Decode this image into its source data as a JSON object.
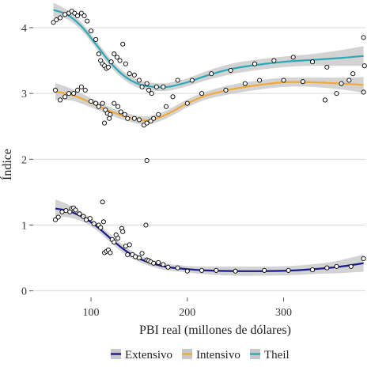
{
  "chart_data": {
    "type": "scatter",
    "title": "",
    "xlabel": "PBI real (millones de dólares)",
    "ylabel": "Índice",
    "xlim": [
      40,
      385
    ],
    "ylim": [
      -0.1,
      4.3
    ],
    "x_ticks": [
      100,
      200,
      300
    ],
    "y_ticks": [
      0,
      1,
      2,
      3,
      4
    ],
    "grid": true,
    "legend_position": "bottom",
    "background": "#ffffff",
    "gridline_color": "#d9d9d9",
    "band_color": "#c8c8c8",
    "series": [
      {
        "name": "Extensivo",
        "color": "#1a1a8c",
        "points": [
          [
            63,
            1.08
          ],
          [
            66,
            1.12
          ],
          [
            70,
            1.2
          ],
          [
            74,
            1.22
          ],
          [
            78,
            1.2
          ],
          [
            80,
            1.25
          ],
          [
            82,
            1.26
          ],
          [
            84,
            1.23
          ],
          [
            88,
            1.17
          ],
          [
            92,
            1.13
          ],
          [
            95,
            1.08
          ],
          [
            99,
            1.1
          ],
          [
            103,
            1.02
          ],
          [
            108,
            1.0
          ],
          [
            110,
            0.96
          ],
          [
            112,
            1.35
          ],
          [
            113,
            1.05
          ],
          [
            114,
            0.58
          ],
          [
            116,
            0.6
          ],
          [
            118,
            0.62
          ],
          [
            120,
            0.58
          ],
          [
            122,
            0.78
          ],
          [
            124,
            0.74
          ],
          [
            126,
            0.85
          ],
          [
            128,
            0.8
          ],
          [
            132,
            0.95
          ],
          [
            133,
            0.9
          ],
          [
            136,
            0.68
          ],
          [
            138,
            0.55
          ],
          [
            140,
            0.7
          ],
          [
            143,
            0.55
          ],
          [
            146,
            0.52
          ],
          [
            150,
            0.5
          ],
          [
            153,
            0.57
          ],
          [
            157,
            1.0
          ],
          [
            158,
            0.47
          ],
          [
            160,
            0.46
          ],
          [
            162,
            0.44
          ],
          [
            165,
            0.42
          ],
          [
            170,
            0.43
          ],
          [
            175,
            0.4
          ],
          [
            180,
            0.36
          ],
          [
            190,
            0.35
          ],
          [
            200,
            0.3
          ],
          [
            215,
            0.31
          ],
          [
            230,
            0.31
          ],
          [
            250,
            0.3
          ],
          [
            280,
            0.31
          ],
          [
            305,
            0.31
          ],
          [
            330,
            0.32
          ],
          [
            345,
            0.35
          ],
          [
            355,
            0.37
          ],
          [
            370,
            0.37
          ],
          [
            383,
            0.49
          ]
        ],
        "smooth": [
          [
            63,
            1.25
          ],
          [
            75,
            1.22
          ],
          [
            90,
            1.13
          ],
          [
            105,
            0.99
          ],
          [
            120,
            0.8
          ],
          [
            135,
            0.62
          ],
          [
            150,
            0.49
          ],
          [
            165,
            0.41
          ],
          [
            180,
            0.36
          ],
          [
            200,
            0.33
          ],
          [
            220,
            0.31
          ],
          [
            250,
            0.3
          ],
          [
            280,
            0.3
          ],
          [
            310,
            0.31
          ],
          [
            340,
            0.34
          ],
          [
            360,
            0.37
          ],
          [
            383,
            0.42
          ]
        ],
        "band_half_width": [
          0.14,
          0.1,
          0.07,
          0.06,
          0.06,
          0.06,
          0.05,
          0.05,
          0.05,
          0.05,
          0.06,
          0.07,
          0.07,
          0.07,
          0.08,
          0.1,
          0.13
        ]
      },
      {
        "name": "Intensivo",
        "color": "#f2a93b",
        "points": [
          [
            63,
            3.05
          ],
          [
            68,
            2.9
          ],
          [
            73,
            2.95
          ],
          [
            77,
            3.0
          ],
          [
            82,
            3.0
          ],
          [
            86,
            3.05
          ],
          [
            90,
            3.1
          ],
          [
            94,
            3.05
          ],
          [
            100,
            2.88
          ],
          [
            105,
            2.85
          ],
          [
            108,
            2.8
          ],
          [
            112,
            2.85
          ],
          [
            114,
            2.55
          ],
          [
            115,
            2.75
          ],
          [
            117,
            2.7
          ],
          [
            119,
            2.62
          ],
          [
            120,
            2.68
          ],
          [
            124,
            2.85
          ],
          [
            128,
            2.8
          ],
          [
            131,
            2.72
          ],
          [
            135,
            2.68
          ],
          [
            138,
            2.62
          ],
          [
            145,
            2.62
          ],
          [
            150,
            2.6
          ],
          [
            155,
            2.52
          ],
          [
            158,
            2.55
          ],
          [
            158,
            1.98
          ],
          [
            162,
            2.58
          ],
          [
            165,
            2.62
          ],
          [
            170,
            2.68
          ],
          [
            178,
            2.8
          ],
          [
            185,
            2.95
          ],
          [
            200,
            2.85
          ],
          [
            215,
            3.0
          ],
          [
            240,
            3.05
          ],
          [
            260,
            3.15
          ],
          [
            275,
            3.2
          ],
          [
            300,
            3.2
          ],
          [
            320,
            3.18
          ],
          [
            343,
            2.9
          ],
          [
            355,
            3.0
          ],
          [
            368,
            3.2
          ],
          [
            383,
            3.02
          ]
        ],
        "smooth": [
          [
            63,
            3.03
          ],
          [
            80,
            2.98
          ],
          [
            100,
            2.86
          ],
          [
            120,
            2.73
          ],
          [
            140,
            2.63
          ],
          [
            155,
            2.59
          ],
          [
            170,
            2.63
          ],
          [
            185,
            2.73
          ],
          [
            200,
            2.85
          ],
          [
            220,
            2.97
          ],
          [
            245,
            3.06
          ],
          [
            270,
            3.12
          ],
          [
            300,
            3.17
          ],
          [
            330,
            3.17
          ],
          [
            360,
            3.15
          ],
          [
            383,
            3.13
          ]
        ],
        "band_half_width": [
          0.13,
          0.09,
          0.07,
          0.06,
          0.06,
          0.06,
          0.06,
          0.06,
          0.06,
          0.06,
          0.07,
          0.07,
          0.07,
          0.07,
          0.09,
          0.12
        ]
      },
      {
        "name": "Theil",
        "color": "#2aa8b8",
        "points": [
          [
            61,
            4.08
          ],
          [
            64,
            4.12
          ],
          [
            68,
            4.15
          ],
          [
            73,
            4.2
          ],
          [
            77,
            4.22
          ],
          [
            80,
            4.25
          ],
          [
            83,
            4.22
          ],
          [
            86,
            4.18
          ],
          [
            90,
            4.22
          ],
          [
            93,
            4.18
          ],
          [
            96,
            4.1
          ],
          [
            100,
            3.95
          ],
          [
            105,
            3.82
          ],
          [
            108,
            3.6
          ],
          [
            110,
            3.5
          ],
          [
            112,
            3.45
          ],
          [
            114,
            3.42
          ],
          [
            116,
            3.38
          ],
          [
            118,
            3.4
          ],
          [
            121,
            3.48
          ],
          [
            124,
            3.6
          ],
          [
            127,
            3.55
          ],
          [
            130,
            3.5
          ],
          [
            133,
            3.75
          ],
          [
            136,
            3.45
          ],
          [
            140,
            3.3
          ],
          [
            145,
            3.28
          ],
          [
            150,
            3.2
          ],
          [
            153,
            3.1
          ],
          [
            158,
            3.15
          ],
          [
            160,
            3.05
          ],
          [
            163,
            3.0
          ],
          [
            168,
            3.1
          ],
          [
            175,
            3.1
          ],
          [
            190,
            3.2
          ],
          [
            205,
            3.2
          ],
          [
            225,
            3.3
          ],
          [
            245,
            3.35
          ],
          [
            270,
            3.45
          ],
          [
            290,
            3.5
          ],
          [
            310,
            3.55
          ],
          [
            330,
            3.48
          ],
          [
            345,
            3.4
          ],
          [
            360,
            3.15
          ],
          [
            372,
            3.3
          ],
          [
            383,
            3.85
          ],
          [
            384,
            3.42
          ]
        ],
        "smooth": [
          [
            61,
            4.27
          ],
          [
            75,
            4.2
          ],
          [
            90,
            4.02
          ],
          [
            105,
            3.75
          ],
          [
            120,
            3.47
          ],
          [
            135,
            3.26
          ],
          [
            150,
            3.14
          ],
          [
            165,
            3.1
          ],
          [
            180,
            3.1
          ],
          [
            200,
            3.17
          ],
          [
            220,
            3.27
          ],
          [
            245,
            3.37
          ],
          [
            270,
            3.43
          ],
          [
            300,
            3.48
          ],
          [
            330,
            3.51
          ],
          [
            360,
            3.54
          ],
          [
            383,
            3.57
          ]
        ],
        "band_half_width": [
          0.11,
          0.07,
          0.06,
          0.06,
          0.06,
          0.06,
          0.06,
          0.06,
          0.06,
          0.06,
          0.07,
          0.08,
          0.08,
          0.08,
          0.09,
          0.12,
          0.15
        ]
      }
    ]
  },
  "legend": {
    "items": [
      {
        "label": "Extensivo",
        "color": "#1a1a8c"
      },
      {
        "label": "Intensivo",
        "color": "#f2a93b"
      },
      {
        "label": "Theil",
        "color": "#2aa8b8"
      }
    ]
  }
}
